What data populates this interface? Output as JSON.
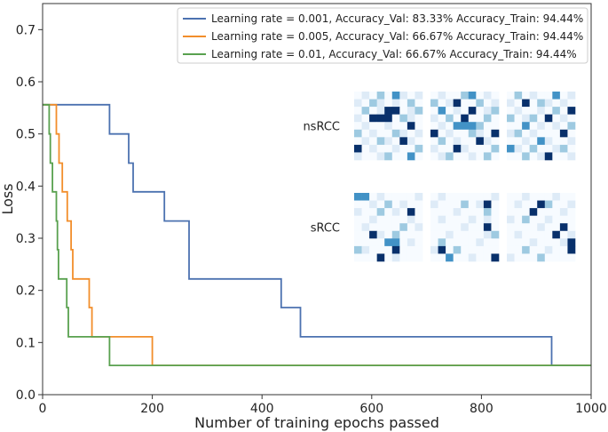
{
  "chart_data": {
    "type": "line",
    "title": "",
    "xlabel": "Number of training epochs passed",
    "ylabel": "Loss",
    "xlim": [
      0,
      1000
    ],
    "ylim": [
      0,
      0.75
    ],
    "xticks": [
      0,
      200,
      400,
      600,
      800,
      1000
    ],
    "xtick_labels": [
      "0",
      "200",
      "400",
      "600",
      "800",
      "1000"
    ],
    "yticks": [
      0.0,
      0.1,
      0.2,
      0.3,
      0.4,
      0.5,
      0.6,
      0.7
    ],
    "ytick_labels": [
      "0.0",
      "0.1",
      "0.2",
      "0.3",
      "0.4",
      "0.5",
      "0.6",
      "0.7"
    ],
    "legend_position": "top-right",
    "series": [
      {
        "name": "Learning rate = 0.001, Accuracy_Val: 83.33% Accuracy_Train: 94.44%",
        "color": "#4c72b0",
        "points": [
          [
            0,
            0.556
          ],
          [
            122,
            0.556
          ],
          [
            122,
            0.5
          ],
          [
            157,
            0.5
          ],
          [
            157,
            0.444
          ],
          [
            165,
            0.444
          ],
          [
            165,
            0.389
          ],
          [
            222,
            0.389
          ],
          [
            222,
            0.333
          ],
          [
            267,
            0.333
          ],
          [
            267,
            0.222
          ],
          [
            435,
            0.222
          ],
          [
            435,
            0.167
          ],
          [
            470,
            0.167
          ],
          [
            470,
            0.111
          ],
          [
            928,
            0.111
          ],
          [
            928,
            0.056
          ],
          [
            1000,
            0.056
          ]
        ]
      },
      {
        "name": "Learning rate = 0.005, Accuracy_Val: 66.67% Accuracy_Train: 94.44%",
        "color": "#f28e2b",
        "points": [
          [
            0,
            0.556
          ],
          [
            25,
            0.556
          ],
          [
            25,
            0.5
          ],
          [
            30,
            0.5
          ],
          [
            30,
            0.444
          ],
          [
            36,
            0.444
          ],
          [
            36,
            0.389
          ],
          [
            45,
            0.389
          ],
          [
            45,
            0.333
          ],
          [
            52,
            0.333
          ],
          [
            52,
            0.278
          ],
          [
            55,
            0.278
          ],
          [
            55,
            0.222
          ],
          [
            85,
            0.222
          ],
          [
            85,
            0.167
          ],
          [
            90,
            0.167
          ],
          [
            90,
            0.111
          ],
          [
            200,
            0.111
          ],
          [
            200,
            0.056
          ],
          [
            1000,
            0.056
          ]
        ]
      },
      {
        "name": "Learning rate = 0.01, Accuracy_Val: 66.67%   Accuracy_Train: 94.44%",
        "color": "#59a14f",
        "points": [
          [
            0,
            0.556
          ],
          [
            12,
            0.556
          ],
          [
            12,
            0.5
          ],
          [
            14,
            0.5
          ],
          [
            14,
            0.444
          ],
          [
            18,
            0.444
          ],
          [
            18,
            0.389
          ],
          [
            25,
            0.389
          ],
          [
            25,
            0.333
          ],
          [
            27,
            0.333
          ],
          [
            27,
            0.278
          ],
          [
            29,
            0.278
          ],
          [
            29,
            0.222
          ],
          [
            44,
            0.222
          ],
          [
            44,
            0.167
          ],
          [
            47,
            0.167
          ],
          [
            47,
            0.111
          ],
          [
            122,
            0.111
          ],
          [
            122,
            0.056
          ],
          [
            1000,
            0.056
          ]
        ]
      }
    ],
    "insets": [
      {
        "label": "nsRCC",
        "matrices": [
          [
            [
              0,
              1,
              0,
              2,
              0,
              3,
              1,
              0,
              1
            ],
            [
              1,
              0,
              2,
              1,
              0,
              1,
              0,
              2,
              0
            ],
            [
              0,
              2,
              0,
              1,
              4,
              4,
              0,
              1,
              2
            ],
            [
              1,
              0,
              4,
              4,
              4,
              0,
              2,
              1,
              0
            ],
            [
              0,
              1,
              0,
              0,
              1,
              0,
              0,
              4,
              0
            ],
            [
              2,
              0,
              1,
              0,
              0,
              2,
              1,
              0,
              1
            ],
            [
              0,
              1,
              0,
              2,
              1,
              0,
              4,
              1,
              0
            ],
            [
              4,
              0,
              1,
              0,
              0,
              1,
              0,
              0,
              2
            ],
            [
              1,
              0,
              0,
              1,
              2,
              0,
              0,
              3,
              0
            ]
          ],
          [
            [
              0,
              1,
              0,
              0,
              2,
              3,
              0,
              1,
              0
            ],
            [
              2,
              0,
              1,
              4,
              0,
              0,
              2,
              0,
              1
            ],
            [
              0,
              3,
              0,
              1,
              0,
              4,
              0,
              1,
              2
            ],
            [
              1,
              0,
              2,
              0,
              4,
              0,
              0,
              2,
              0
            ],
            [
              0,
              1,
              0,
              3,
              3,
              3,
              2,
              0,
              0
            ],
            [
              4,
              0,
              1,
              0,
              0,
              2,
              1,
              0,
              4
            ],
            [
              0,
              2,
              0,
              1,
              0,
              0,
              4,
              1,
              0
            ],
            [
              1,
              0,
              0,
              4,
              1,
              0,
              0,
              0,
              2
            ],
            [
              0,
              1,
              2,
              0,
              0,
              1,
              0,
              2,
              0
            ]
          ],
          [
            [
              0,
              2,
              0,
              1,
              0,
              0,
              3,
              0,
              1
            ],
            [
              1,
              0,
              4,
              0,
              2,
              1,
              0,
              1,
              0
            ],
            [
              0,
              1,
              0,
              0,
              1,
              0,
              2,
              0,
              4
            ],
            [
              2,
              0,
              1,
              2,
              0,
              4,
              0,
              1,
              0
            ],
            [
              0,
              0,
              3,
              0,
              1,
              0,
              1,
              0,
              2
            ],
            [
              1,
              2,
              0,
              1,
              0,
              0,
              0,
              4,
              0
            ],
            [
              0,
              0,
              1,
              0,
              3,
              1,
              0,
              0,
              1
            ],
            [
              3,
              1,
              0,
              2,
              0,
              0,
              1,
              2,
              0
            ],
            [
              0,
              0,
              2,
              0,
              1,
              4,
              0,
              0,
              1
            ]
          ]
        ]
      },
      {
        "label": "sRCC",
        "matrices": [
          [
            [
              3,
              3,
              0,
              1,
              0,
              0,
              0,
              0,
              1
            ],
            [
              0,
              0,
              1,
              0,
              2,
              0,
              1,
              0,
              0
            ],
            [
              1,
              0,
              0,
              2,
              0,
              1,
              0,
              4,
              0
            ],
            [
              0,
              0,
              1,
              0,
              0,
              0,
              0,
              1,
              0
            ],
            [
              0,
              1,
              0,
              0,
              0,
              0,
              2,
              0,
              1
            ],
            [
              0,
              0,
              4,
              1,
              0,
              2,
              0,
              0,
              0
            ],
            [
              0,
              0,
              0,
              0,
              3,
              3,
              0,
              1,
              0
            ],
            [
              2,
              1,
              0,
              0,
              0,
              4,
              0,
              0,
              0
            ],
            [
              0,
              0,
              0,
              4,
              0,
              1,
              0,
              0,
              0
            ]
          ],
          [
            [
              0,
              1,
              0,
              0,
              0,
              0,
              0,
              0,
              1
            ],
            [
              1,
              0,
              0,
              0,
              2,
              0,
              1,
              4,
              0
            ],
            [
              0,
              0,
              0,
              1,
              0,
              0,
              0,
              2,
              0
            ],
            [
              0,
              1,
              0,
              0,
              0,
              1,
              0,
              1,
              0
            ],
            [
              0,
              0,
              0,
              0,
              1,
              0,
              0,
              4,
              0
            ],
            [
              0,
              0,
              1,
              0,
              0,
              0,
              0,
              1,
              2
            ],
            [
              0,
              2,
              0,
              0,
              0,
              0,
              1,
              0,
              0
            ],
            [
              1,
              4,
              0,
              2,
              0,
              0,
              0,
              0,
              0
            ],
            [
              0,
              0,
              3,
              0,
              0,
              1,
              0,
              0,
              4
            ]
          ],
          [
            [
              0,
              0,
              1,
              0,
              0,
              0,
              1,
              0,
              0
            ],
            [
              0,
              1,
              0,
              0,
              4,
              2,
              0,
              0,
              1
            ],
            [
              0,
              0,
              0,
              4,
              0,
              0,
              0,
              1,
              0
            ],
            [
              1,
              0,
              2,
              0,
              0,
              1,
              0,
              0,
              0
            ],
            [
              0,
              0,
              0,
              0,
              1,
              0,
              0,
              4,
              0
            ],
            [
              0,
              1,
              0,
              0,
              0,
              0,
              4,
              0,
              1
            ],
            [
              0,
              0,
              0,
              1,
              0,
              0,
              0,
              1,
              4
            ],
            [
              0,
              0,
              2,
              0,
              0,
              1,
              0,
              0,
              4
            ],
            [
              1,
              0,
              0,
              0,
              2,
              0,
              0,
              0,
              0
            ]
          ]
        ]
      }
    ]
  }
}
